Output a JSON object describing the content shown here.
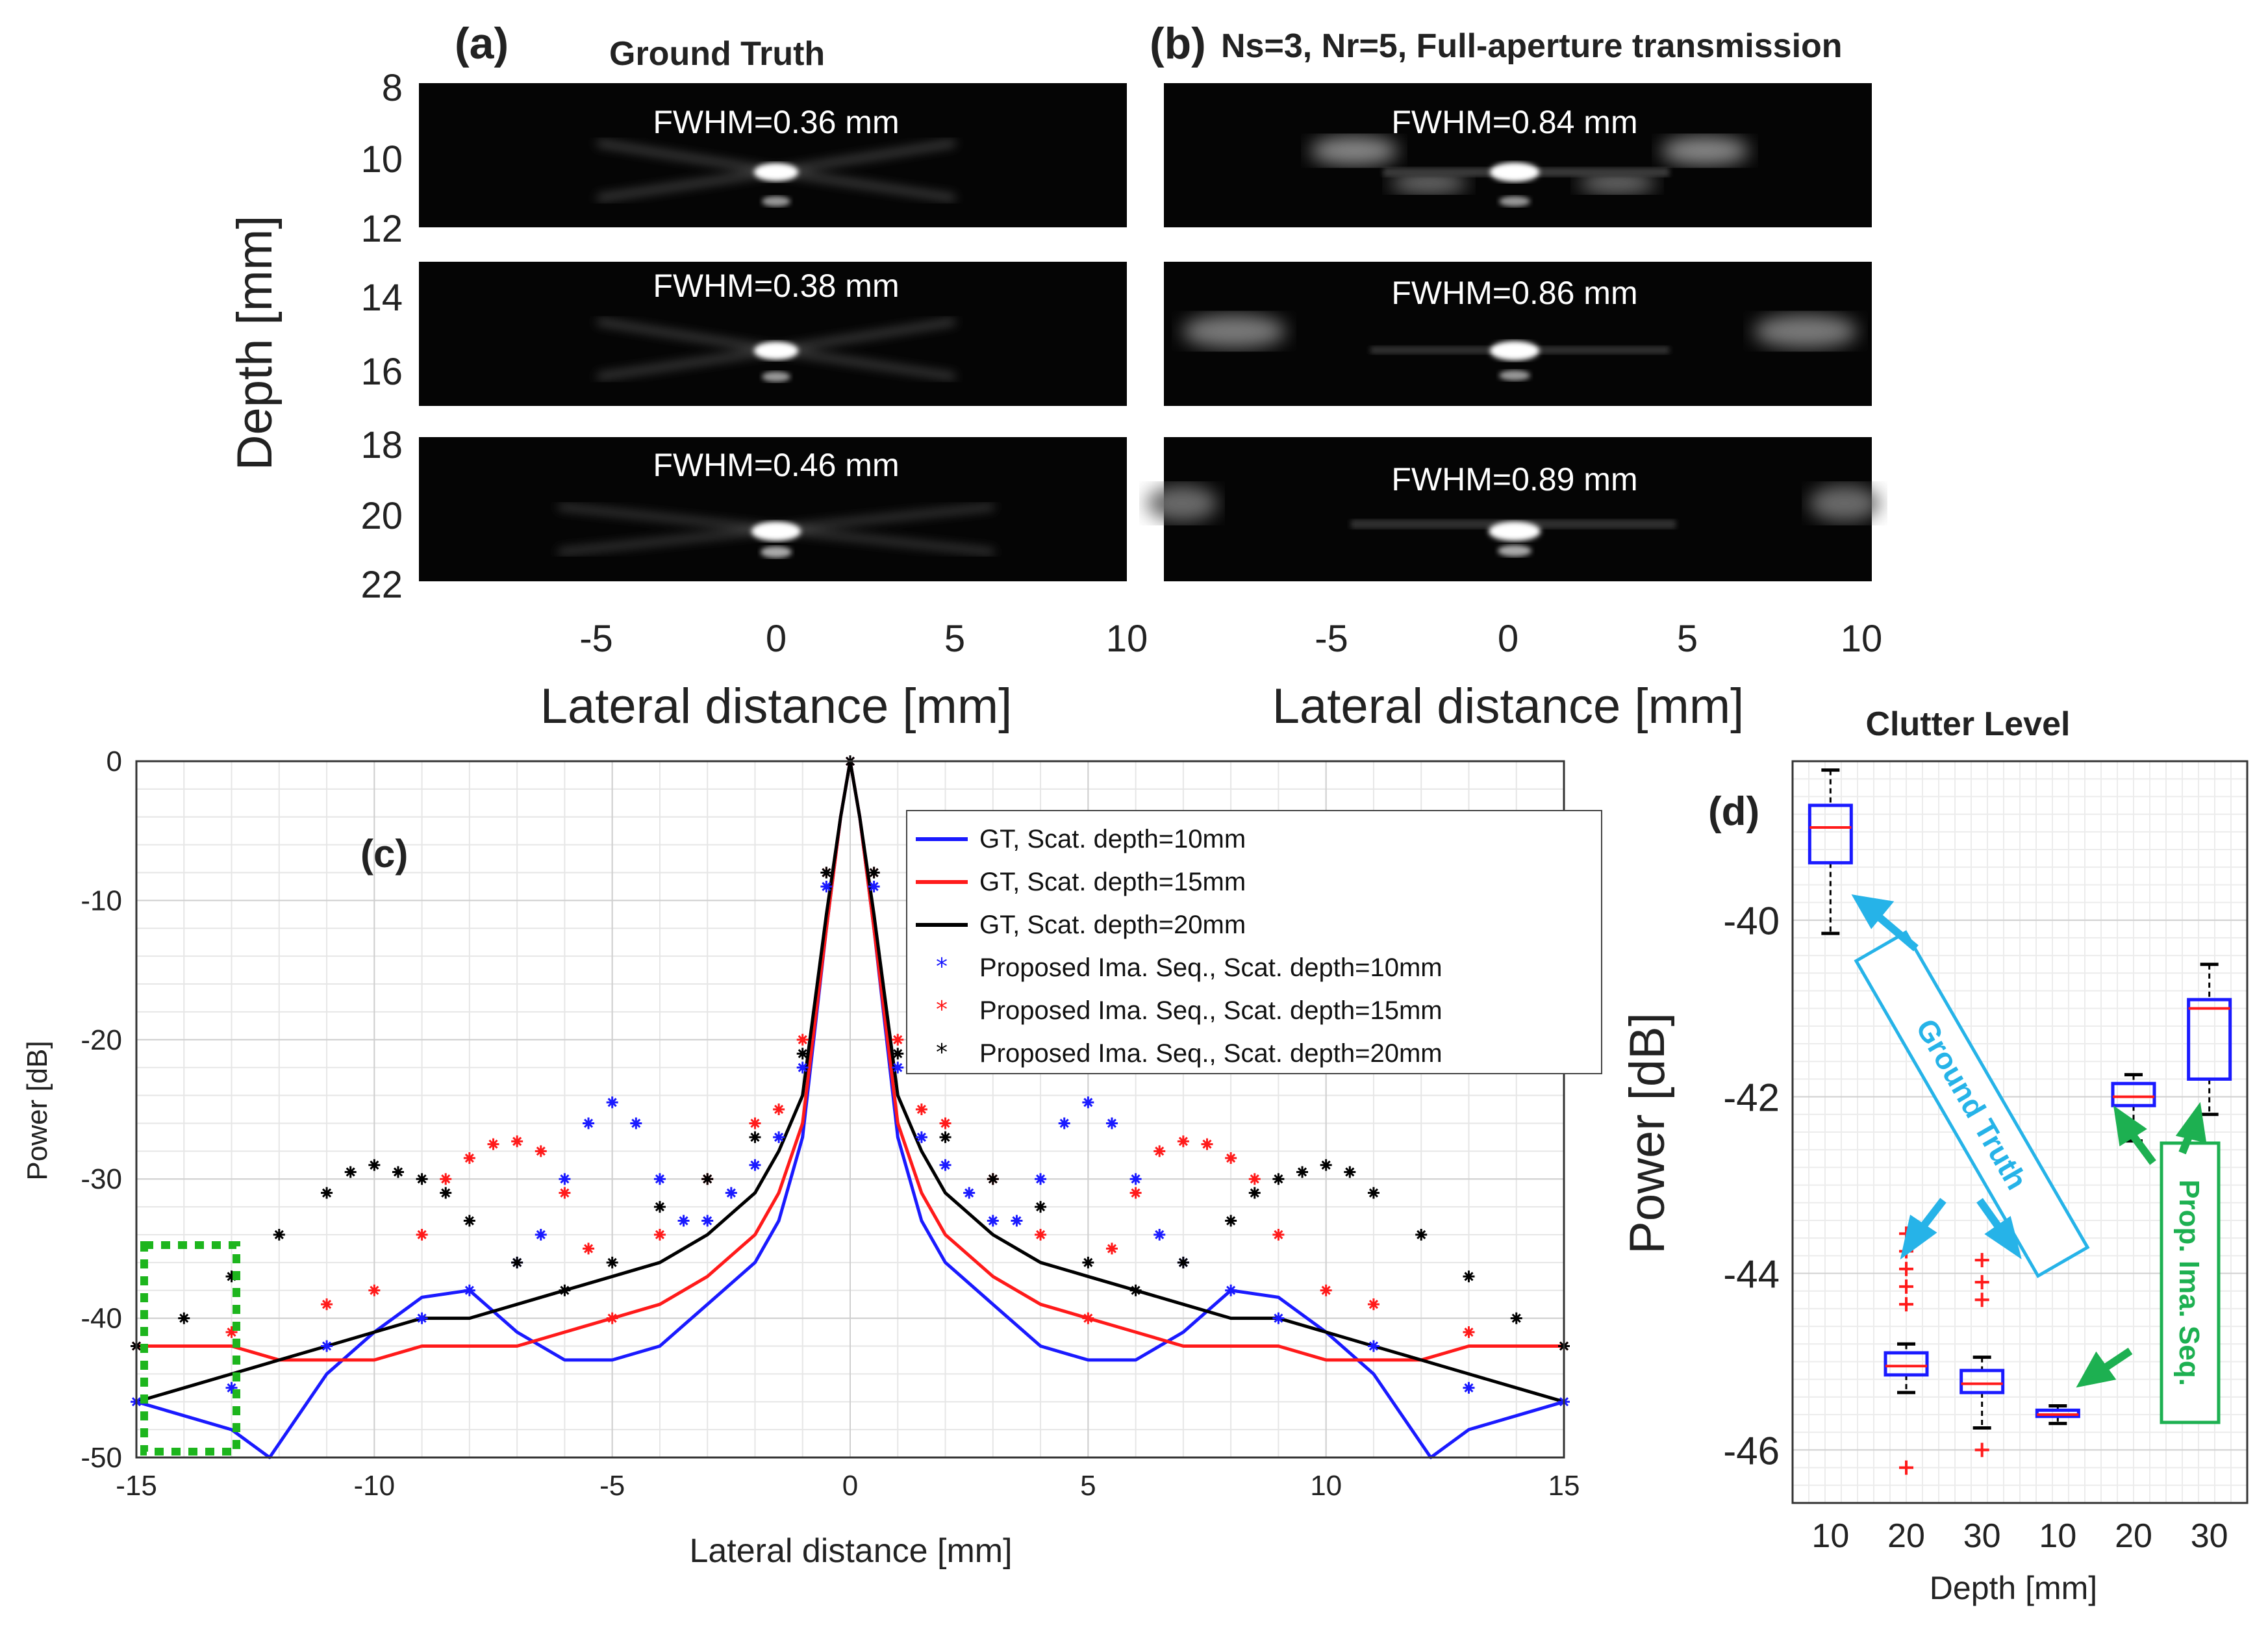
{
  "panel_a": {
    "label": "(a)",
    "title": "Ground Truth",
    "y_label": "Depth [mm]",
    "x_label": "Lateral distance [mm]",
    "y_ticks": [
      "8",
      "10",
      "12",
      "14",
      "16",
      "18",
      "20",
      "22"
    ],
    "x_ticks": [
      "-5",
      "0",
      "5",
      "10"
    ],
    "images": [
      {
        "fwhm": "FWHM=0.36 mm"
      },
      {
        "fwhm": "FWHM=0.38 mm"
      },
      {
        "fwhm": "FWHM=0.46 mm"
      }
    ]
  },
  "panel_b": {
    "label": "(b)",
    "title": "Ns=3, Nr=5, Full-aperture  transmission",
    "x_label": "Lateral distance [mm]",
    "x_ticks": [
      "-5",
      "0",
      "5",
      "10"
    ],
    "images": [
      {
        "fwhm": "FWHM=0.84 mm"
      },
      {
        "fwhm": "FWHM=0.86 mm"
      },
      {
        "fwhm": "FWHM=0.89 mm"
      }
    ]
  },
  "panel_c": {
    "label": "(c)",
    "legend_labels": [
      "GT, Scat. depth=10mm",
      "GT, Scat. depth=15mm",
      "GT, Scat. depth=20mm",
      "Proposed Ima. Seq., Scat. depth=10mm",
      "Proposed Ima. Seq., Scat. depth=15mm",
      "Proposed Ima. Seq., Scat. depth=20mm"
    ],
    "x_ticks": [
      "-15",
      "-10",
      "-5",
      "0",
      "5",
      "10",
      "15"
    ],
    "y_ticks": [
      "0",
      "-10",
      "-20",
      "-30",
      "-40",
      "-50"
    ]
  },
  "panel_d": {
    "label": "(d)",
    "title": "Clutter Level",
    "annot_gt": "Ground Truth",
    "annot_prop": "Prop. Ima. Seq.",
    "y_ticks": [
      "-40",
      "-42",
      "-44",
      "-46"
    ],
    "x_ticks": [
      "10",
      "20",
      "30",
      "10",
      "20",
      "30"
    ]
  },
  "chart_data": [
    {
      "type": "line",
      "panel": "(c)",
      "xlabel": "Lateral distance [mm]",
      "ylabel": "Power [dB]",
      "xlim": [
        -15,
        15
      ],
      "ylim": [
        -50,
        0
      ],
      "grid": true,
      "legend_position": "top-right",
      "series": [
        {
          "name": "GT, Scat. depth=10mm",
          "style": "line",
          "color": "#1a1aff",
          "x": [
            -15,
            -14,
            -13,
            -12.2,
            -11,
            -10,
            -9,
            -8,
            -7,
            -6,
            -5,
            -4,
            -3,
            -2,
            -1.5,
            -1,
            -0.5,
            -0.2,
            0,
            0.2,
            0.5,
            1,
            1.5,
            2,
            3,
            4,
            5,
            6,
            7,
            8,
            9,
            10,
            11,
            12.2,
            13,
            14,
            15
          ],
          "y": [
            -46,
            -47,
            -48,
            -50,
            -44,
            -41,
            -38.5,
            -38,
            -41,
            -43,
            -43,
            -42,
            -39,
            -36,
            -33,
            -27,
            -12,
            -4,
            0,
            -4,
            -12,
            -27,
            -33,
            -36,
            -39,
            -42,
            -43,
            -43,
            -41,
            -38,
            -38.5,
            -41,
            -44,
            -50,
            -48,
            -47,
            -46
          ]
        },
        {
          "name": "GT, Scat. depth=15mm",
          "style": "line",
          "color": "#ff1a1a",
          "x": [
            -15,
            -14,
            -13,
            -12,
            -11,
            -10,
            -9,
            -8,
            -7,
            -6,
            -5,
            -4,
            -3,
            -2,
            -1.5,
            -1,
            -0.5,
            -0.2,
            0,
            0.2,
            0.5,
            1,
            1.5,
            2,
            3,
            4,
            5,
            6,
            7,
            8,
            9,
            10,
            11,
            12,
            13,
            14,
            15
          ],
          "y": [
            -42,
            -42,
            -42,
            -43,
            -43,
            -43,
            -42,
            -42,
            -42,
            -41,
            -40,
            -39,
            -37,
            -34,
            -31,
            -26,
            -12,
            -4,
            0,
            -4,
            -12,
            -26,
            -31,
            -34,
            -37,
            -39,
            -40,
            -41,
            -42,
            -42,
            -42,
            -43,
            -43,
            -43,
            -42,
            -42,
            -42
          ]
        },
        {
          "name": "GT, Scat. depth=20mm",
          "style": "line",
          "color": "#000000",
          "x": [
            -15,
            -14,
            -13,
            -12,
            -11,
            -10,
            -9,
            -8,
            -7,
            -6,
            -5,
            -4,
            -3,
            -2,
            -1.5,
            -1,
            -0.5,
            -0.2,
            0,
            0.2,
            0.5,
            1,
            1.5,
            2,
            3,
            4,
            5,
            6,
            7,
            8,
            9,
            10,
            11,
            12,
            13,
            14,
            15
          ],
          "y": [
            -46,
            -45,
            -44,
            -43,
            -42,
            -41,
            -40,
            -40,
            -39,
            -38,
            -37,
            -36,
            -34,
            -31,
            -28,
            -24,
            -11,
            -4,
            0,
            -4,
            -11,
            -24,
            -28,
            -31,
            -34,
            -36,
            -37,
            -38,
            -39,
            -40,
            -40,
            -41,
            -42,
            -43,
            -44,
            -45,
            -46
          ]
        },
        {
          "name": "Proposed Ima. Seq., Scat. depth=10mm",
          "style": "markers",
          "color": "#1a1aff",
          "x": [
            -15,
            -13,
            -11,
            -9,
            -8,
            -7,
            -6.5,
            -6,
            -5.5,
            -5,
            -4.5,
            -4,
            -3.5,
            -3,
            -2.5,
            -2,
            -1.5,
            -1,
            -0.5,
            0,
            0.5,
            1,
            1.5,
            2,
            2.5,
            3,
            3.5,
            4,
            4.5,
            5,
            5.5,
            6,
            6.5,
            7,
            8,
            9,
            11,
            13,
            15
          ],
          "y": [
            -46,
            -45,
            -42,
            -40,
            -38,
            -36,
            -34,
            -30,
            -26,
            -24.5,
            -26,
            -30,
            -33,
            -33,
            -31,
            -29,
            -27,
            -22,
            -9,
            0,
            -9,
            -22,
            -27,
            -29,
            -31,
            -33,
            -33,
            -30,
            -26,
            -24.5,
            -26,
            -30,
            -34,
            -36,
            -38,
            -40,
            -42,
            -45,
            -46
          ]
        },
        {
          "name": "Proposed Ima. Seq., Scat. depth=15mm",
          "style": "markers",
          "color": "#ff1a1a",
          "x": [
            -15,
            -13,
            -11,
            -10,
            -9,
            -8.5,
            -8,
            -7.5,
            -7,
            -6.5,
            -6,
            -5.5,
            -5,
            -4,
            -3,
            -2,
            -1.5,
            -1,
            -0.5,
            0,
            0.5,
            1,
            1.5,
            2,
            3,
            4,
            5,
            5.5,
            6,
            6.5,
            7,
            7.5,
            8,
            8.5,
            9,
            10,
            11,
            13,
            15
          ],
          "y": [
            -42,
            -41,
            -39,
            -38,
            -34,
            -30,
            -28.5,
            -27.5,
            -27.3,
            -28,
            -31,
            -35,
            -40,
            -34,
            -30,
            -26,
            -25,
            -20,
            -8,
            0,
            -8,
            -20,
            -25,
            -26,
            -30,
            -34,
            -40,
            -35,
            -31,
            -28,
            -27.3,
            -27.5,
            -28.5,
            -30,
            -34,
            -38,
            -39,
            -41,
            -42
          ]
        },
        {
          "name": "Proposed Ima. Seq., Scat. depth=20mm",
          "style": "markers",
          "color": "#000000",
          "x": [
            -15,
            -14,
            -13,
            -12,
            -11,
            -10.5,
            -10,
            -9.5,
            -9,
            -8.5,
            -8,
            -7,
            -6,
            -5,
            -4,
            -3,
            -2,
            -1,
            -0.5,
            0,
            0.5,
            1,
            2,
            3,
            4,
            5,
            6,
            7,
            8,
            8.5,
            9,
            9.5,
            10,
            10.5,
            11,
            12,
            13,
            14,
            15
          ],
          "y": [
            -42,
            -40,
            -37,
            -34,
            -31,
            -29.5,
            -29,
            -29.5,
            -30,
            -31,
            -33,
            -36,
            -38,
            -36,
            -32,
            -30,
            -27,
            -21,
            -8,
            0,
            -8,
            -21,
            -27,
            -30,
            -32,
            -36,
            -38,
            -36,
            -33,
            -31,
            -30,
            -29.5,
            -29,
            -29.5,
            -31,
            -34,
            -37,
            -40,
            -42
          ]
        }
      ]
    },
    {
      "type": "box",
      "panel": "(d)",
      "title": "Clutter Level",
      "xlabel": "Depth [mm]",
      "ylabel": "Power [dB]",
      "ylim": [
        -46.6,
        -38.2
      ],
      "grid": true,
      "categories": [
        "10",
        "20",
        "30",
        "10",
        "20",
        "30"
      ],
      "boxes": [
        {
          "group": "Ground Truth",
          "depth": 10,
          "whisker_high": -38.3,
          "q3": -38.7,
          "median": -38.95,
          "q1": -39.35,
          "whisker_low": -40.15,
          "outliers": []
        },
        {
          "group": "Ground Truth",
          "depth": 20,
          "whisker_high": -44.8,
          "q3": -44.9,
          "median": -45.05,
          "q1": -45.15,
          "whisker_low": -45.35,
          "outliers": [
            -43.55,
            -43.75,
            -43.95,
            -44.15,
            -44.35,
            -46.2
          ]
        },
        {
          "group": "Ground Truth",
          "depth": 30,
          "whisker_high": -44.95,
          "q3": -45.1,
          "median": -45.25,
          "q1": -45.35,
          "whisker_low": -45.75,
          "outliers": [
            -43.85,
            -44.1,
            -44.3,
            -46.0
          ]
        },
        {
          "group": "Prop. Ima. Seq.",
          "depth": 10,
          "whisker_high": -45.5,
          "q3": -45.55,
          "median": -45.6,
          "q1": -45.62,
          "whisker_low": -45.7,
          "outliers": []
        },
        {
          "group": "Prop. Ima. Seq.",
          "depth": 20,
          "whisker_high": -41.75,
          "q3": -41.85,
          "median": -42.0,
          "q1": -42.1,
          "whisker_low": -42.5,
          "outliers": []
        },
        {
          "group": "Prop. Ima. Seq.",
          "depth": 30,
          "whisker_high": -40.5,
          "q3": -40.9,
          "median": -41.0,
          "q1": -41.8,
          "whisker_low": -42.2,
          "outliers": []
        }
      ]
    }
  ]
}
